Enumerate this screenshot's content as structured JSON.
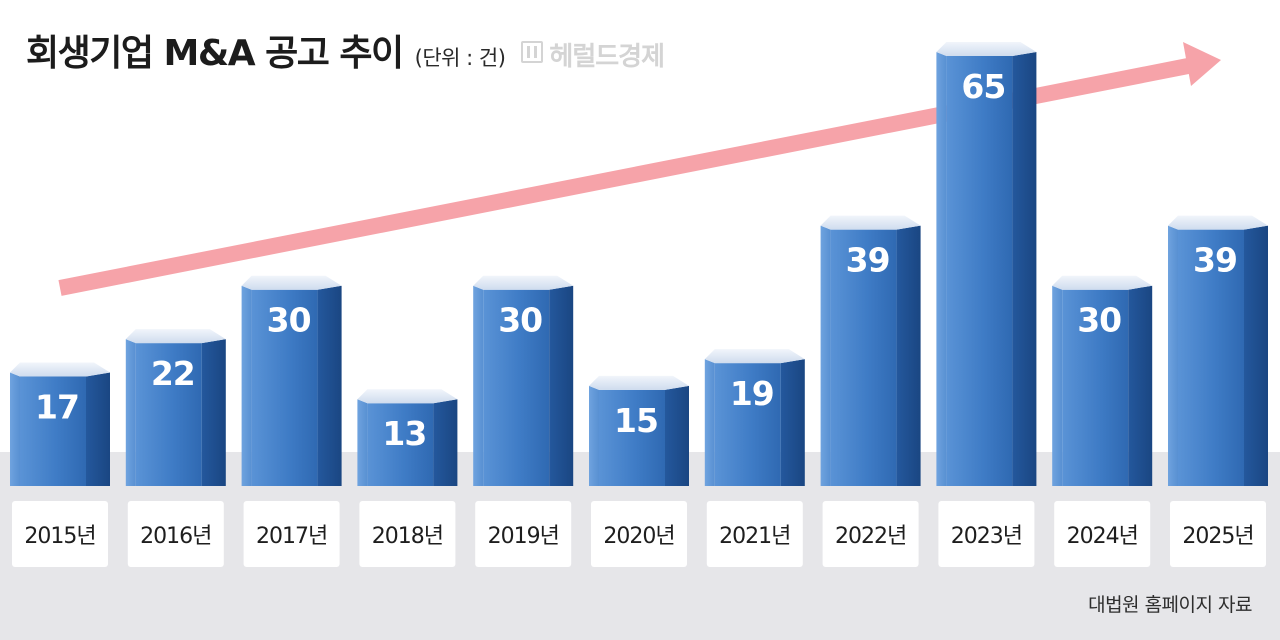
{
  "header": {
    "title": "회생기업 M&A 공고 추이",
    "unit": "(단위 : 건)",
    "watermark": "헤럴드경제"
  },
  "source": "대법원 홈페이지 자료",
  "colors": {
    "bar_front": "#3f7cc6",
    "bar_side": "#1f4f91",
    "bar_top": "#dfe8f5",
    "trend_arrow": "#f6a3a9",
    "floor": "#e6e6e9",
    "label_box": "#ffffff"
  },
  "chart_data": {
    "type": "bar",
    "categories": [
      "2015년",
      "2016년",
      "2017년",
      "2018년",
      "2019년",
      "2020년",
      "2021년",
      "2022년",
      "2023년",
      "2024년",
      "2025년"
    ],
    "values": [
      17,
      22,
      30,
      13,
      30,
      15,
      19,
      39,
      65,
      30,
      39
    ],
    "ylim": [
      0,
      65
    ],
    "grid": false,
    "legend": "none",
    "annotations": [
      "upward trend arrow"
    ]
  }
}
